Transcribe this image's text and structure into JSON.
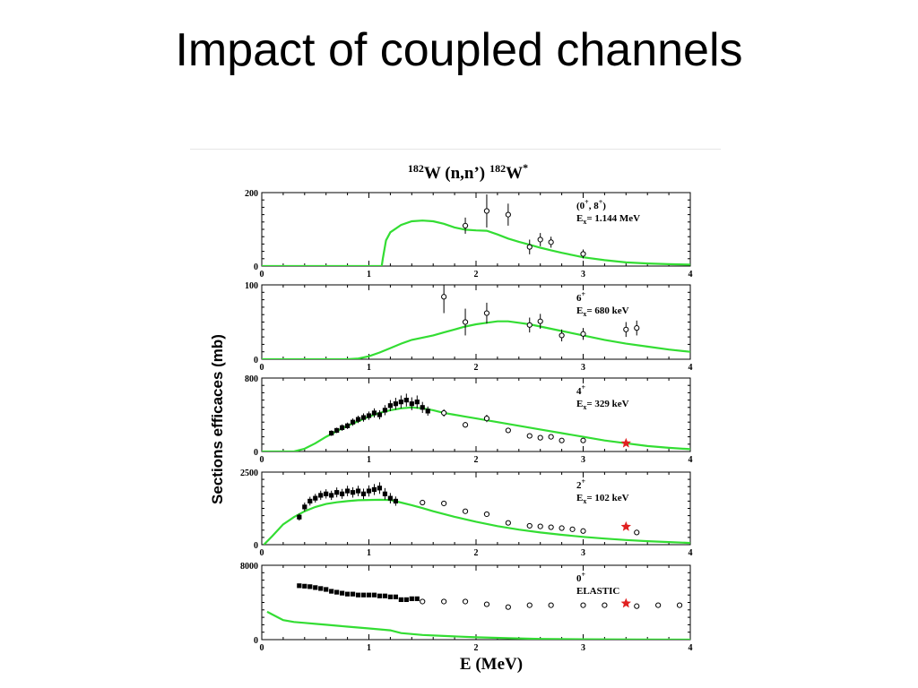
{
  "slide": {
    "title": "Impact of coupled channels"
  },
  "figure": {
    "title_parts": {
      "mass1": "182",
      "reaction": "W (n,n’)",
      "mass2": "182",
      "product": "W",
      "star": "*"
    },
    "ylabel": "Sections efficaces (mb)",
    "xlabel": "E (MeV)",
    "colors": {
      "model": "#33dd33",
      "star": "#e02020",
      "data": "#000000"
    }
  },
  "chart_data": [
    {
      "type": "line",
      "panel_label": [
        "(0",
        "+",
        ", 8",
        "+",
        ")"
      ],
      "ex_label": [
        "E",
        "x",
        "= 1.144 MeV"
      ],
      "xlim": [
        0,
        4
      ],
      "ylim": [
        0,
        200
      ],
      "xticks": [
        "0",
        "1",
        "2",
        "3",
        "4"
      ],
      "yticks": [
        "0",
        "200"
      ],
      "series": [
        {
          "role": "model",
          "x": [
            0,
            1.12,
            1.13,
            1.16,
            1.2,
            1.3,
            1.4,
            1.5,
            1.6,
            1.7,
            1.8,
            1.9,
            2.0,
            2.1,
            2.2,
            2.3,
            2.4,
            2.5,
            2.6,
            2.7,
            2.8,
            2.9,
            3.0,
            3.2,
            3.4,
            3.6,
            3.8,
            4.0
          ],
          "y": [
            0,
            0,
            20,
            70,
            92,
            112,
            122,
            124,
            122,
            115,
            105,
            99,
            97,
            96,
            86,
            75,
            66,
            58,
            50,
            43,
            36,
            30,
            24,
            16,
            10,
            7,
            5,
            4
          ]
        },
        {
          "role": "open_points",
          "x": [
            1.9,
            2.1,
            2.3,
            2.5,
            2.6,
            2.7,
            3.0
          ],
          "y": [
            110,
            150,
            140,
            52,
            72,
            65,
            33
          ],
          "err": [
            22,
            45,
            30,
            20,
            18,
            15,
            12
          ]
        }
      ]
    },
    {
      "type": "line",
      "panel_label": [
        "6",
        "+"
      ],
      "ex_label": [
        "E",
        "x",
        "=  680 keV"
      ],
      "xlim": [
        0,
        4
      ],
      "ylim": [
        0,
        100
      ],
      "xticks": [
        "0",
        "1",
        "2",
        "3",
        "4"
      ],
      "yticks": [
        "0",
        "100"
      ],
      "series": [
        {
          "role": "model",
          "x": [
            0,
            0.8,
            0.9,
            1.0,
            1.1,
            1.2,
            1.3,
            1.4,
            1.5,
            1.6,
            1.7,
            1.8,
            1.9,
            2.0,
            2.1,
            2.2,
            2.3,
            2.4,
            2.5,
            2.6,
            2.8,
            3.0,
            3.2,
            3.4,
            3.6,
            3.8,
            4.0
          ],
          "y": [
            0,
            0,
            1,
            4,
            9,
            15,
            21,
            26,
            29,
            32,
            36,
            40,
            44,
            47,
            49,
            51,
            51,
            49,
            47,
            44,
            38,
            32,
            26,
            21,
            17,
            13,
            10
          ]
        },
        {
          "role": "open_points",
          "x": [
            1.7,
            1.9,
            2.1,
            2.5,
            2.6,
            2.8,
            3.0,
            3.4,
            3.5
          ],
          "y": [
            84,
            50,
            62,
            46,
            51,
            32,
            34,
            40,
            42
          ],
          "err": [
            22,
            18,
            14,
            10,
            10,
            8,
            8,
            10,
            10
          ]
        }
      ]
    },
    {
      "type": "line",
      "panel_label": [
        "4",
        "+"
      ],
      "ex_label": [
        "E",
        "x",
        "=  329 keV"
      ],
      "xlim": [
        0,
        4
      ],
      "ylim": [
        0,
        800
      ],
      "xticks": [
        "0",
        "1",
        "2",
        "3",
        "4"
      ],
      "yticks": [
        "0",
        "800"
      ],
      "series": [
        {
          "role": "model",
          "x": [
            0,
            0.3,
            0.4,
            0.5,
            0.6,
            0.7,
            0.8,
            0.9,
            1.0,
            1.1,
            1.2,
            1.3,
            1.4,
            1.5,
            1.6,
            1.7,
            1.8,
            1.9,
            2.0,
            2.2,
            2.4,
            2.6,
            2.8,
            3.0,
            3.2,
            3.4,
            3.6,
            3.8,
            4.0
          ],
          "y": [
            0,
            0,
            30,
            90,
            160,
            220,
            280,
            330,
            380,
            420,
            450,
            470,
            480,
            470,
            450,
            420,
            400,
            380,
            360,
            320,
            280,
            240,
            200,
            160,
            120,
            90,
            60,
            40,
            25
          ]
        },
        {
          "role": "filled_points",
          "x": [
            0.65,
            0.7,
            0.75,
            0.8,
            0.85,
            0.9,
            0.95,
            1.0,
            1.05,
            1.1,
            1.15,
            1.2,
            1.25,
            1.3,
            1.35,
            1.4,
            1.45,
            1.5,
            1.55
          ],
          "y": [
            200,
            230,
            260,
            280,
            320,
            350,
            370,
            390,
            420,
            400,
            450,
            500,
            520,
            540,
            560,
            520,
            540,
            480,
            440
          ],
          "err": [
            30,
            30,
            35,
            35,
            40,
            40,
            45,
            45,
            50,
            50,
            55,
            60,
            65,
            70,
            70,
            70,
            70,
            60,
            50
          ]
        },
        {
          "role": "open_points",
          "x": [
            1.7,
            1.9,
            2.1,
            2.3,
            2.5,
            2.6,
            2.7,
            2.8,
            3.0
          ],
          "y": [
            420,
            290,
            360,
            230,
            170,
            150,
            160,
            120,
            120
          ],
          "err": [
            40,
            30,
            40,
            20,
            15,
            12,
            12,
            10,
            10
          ]
        },
        {
          "role": "star",
          "x": [
            3.4
          ],
          "y": [
            90
          ]
        }
      ]
    },
    {
      "type": "line",
      "panel_label": [
        "2",
        "+"
      ],
      "ex_label": [
        "E",
        "x",
        "=  102 keV"
      ],
      "xlim": [
        0,
        4
      ],
      "ylim": [
        0,
        2500
      ],
      "xticks": [
        "0",
        "1",
        "2",
        "3",
        "4"
      ],
      "yticks": [
        "0",
        "2500"
      ],
      "series": [
        {
          "role": "model",
          "x": [
            0.02,
            0.1,
            0.2,
            0.3,
            0.4,
            0.5,
            0.6,
            0.7,
            0.8,
            0.9,
            1.0,
            1.1,
            1.2,
            1.3,
            1.4,
            1.5,
            1.6,
            1.8,
            2.0,
            2.2,
            2.4,
            2.6,
            2.8,
            3.0,
            3.2,
            3.4,
            3.6,
            3.8,
            4.0
          ],
          "y": [
            0,
            300,
            700,
            950,
            1150,
            1300,
            1400,
            1460,
            1500,
            1530,
            1540,
            1545,
            1540,
            1450,
            1360,
            1260,
            1150,
            960,
            790,
            640,
            520,
            420,
            340,
            270,
            210,
            160,
            120,
            90,
            60
          ]
        },
        {
          "role": "filled_points",
          "x": [
            0.35,
            0.4,
            0.45,
            0.5,
            0.55,
            0.6,
            0.65,
            0.7,
            0.75,
            0.8,
            0.85,
            0.9,
            0.95,
            1.0,
            1.05,
            1.1,
            1.15,
            1.2,
            1.25
          ],
          "y": [
            950,
            1300,
            1500,
            1600,
            1700,
            1750,
            1700,
            1800,
            1750,
            1850,
            1800,
            1850,
            1750,
            1850,
            1900,
            1950,
            1750,
            1600,
            1500
          ],
          "err": [
            120,
            150,
            150,
            150,
            160,
            160,
            160,
            170,
            170,
            180,
            180,
            180,
            180,
            190,
            190,
            200,
            200,
            180,
            160
          ]
        },
        {
          "role": "open_points",
          "x": [
            1.5,
            1.7,
            1.9,
            2.1,
            2.3,
            2.5,
            2.6,
            2.7,
            2.8,
            2.9,
            3.0,
            3.5
          ],
          "y": [
            1450,
            1420,
            1150,
            1050,
            750,
            650,
            630,
            600,
            570,
            530,
            470,
            420
          ],
          "err": [
            0,
            0,
            0,
            0,
            0,
            0,
            0,
            0,
            0,
            0,
            0,
            0
          ]
        },
        {
          "role": "star",
          "x": [
            3.4
          ],
          "y": [
            620
          ]
        }
      ]
    },
    {
      "type": "line",
      "panel_label": [
        "0",
        "+"
      ],
      "ex_label": [
        "",
        "",
        "ELASTIC"
      ],
      "xlim": [
        0,
        4
      ],
      "ylim": [
        0,
        8000
      ],
      "xticks": [
        "0",
        "1",
        "2",
        "3",
        "4"
      ],
      "yticks": [
        "0",
        "8000"
      ],
      "series": [
        {
          "role": "model",
          "x": [
            0.05,
            0.1,
            0.15,
            0.2,
            0.3,
            0.4,
            0.5,
            0.6,
            0.8,
            1.0,
            1.2,
            1.3,
            1.5,
            1.7,
            2.0,
            2.3,
            2.6,
            3.0,
            3.5,
            4.0
          ],
          "y": [
            3000,
            2700,
            2400,
            2100,
            1900,
            1800,
            1700,
            1600,
            1400,
            1200,
            1000,
            700,
            500,
            400,
            250,
            150,
            80,
            40,
            10,
            0
          ]
        },
        {
          "role": "filled_points",
          "x": [
            0.35,
            0.4,
            0.45,
            0.5,
            0.55,
            0.6,
            0.65,
            0.7,
            0.75,
            0.8,
            0.85,
            0.9,
            0.95,
            1.0,
            1.05,
            1.1,
            1.15,
            1.2,
            1.25,
            1.3,
            1.35,
            1.4,
            1.45
          ],
          "y": [
            5800,
            5750,
            5700,
            5600,
            5500,
            5400,
            5200,
            5100,
            5000,
            4900,
            4900,
            4800,
            4800,
            4800,
            4800,
            4700,
            4700,
            4600,
            4600,
            4300,
            4300,
            4400,
            4400
          ],
          "err": [
            0,
            0,
            0,
            0,
            0,
            0,
            0,
            0,
            0,
            0,
            0,
            0,
            0,
            0,
            0,
            0,
            0,
            0,
            0,
            0,
            0,
            0,
            0
          ]
        },
        {
          "role": "open_points",
          "x": [
            1.5,
            1.7,
            1.9,
            2.1,
            2.3,
            2.5,
            2.7,
            3.0,
            3.2,
            3.5,
            3.7,
            3.9
          ],
          "y": [
            4100,
            4100,
            4100,
            3800,
            3500,
            3700,
            3700,
            3700,
            3700,
            3600,
            3700,
            3700
          ],
          "err": [
            0,
            0,
            0,
            0,
            0,
            0,
            0,
            0,
            0,
            0,
            0,
            0
          ]
        },
        {
          "role": "star",
          "x": [
            3.4
          ],
          "y": [
            3900
          ]
        }
      ]
    }
  ]
}
